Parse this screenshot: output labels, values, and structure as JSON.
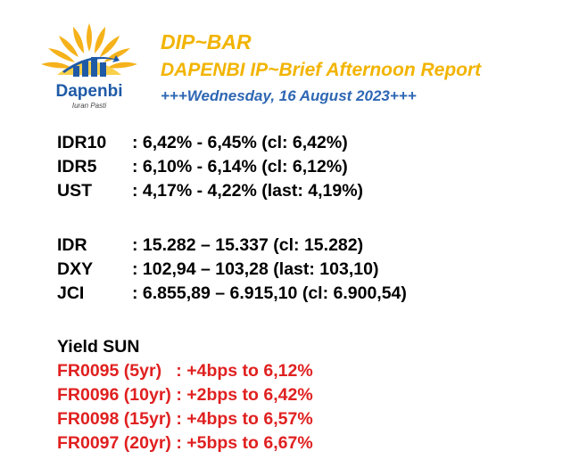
{
  "logo": {
    "name": "Dapenbi",
    "tagline": "Iuran Pasti",
    "colors": {
      "petal": "#f5b21a",
      "bars": "#1f5aa6"
    }
  },
  "header": {
    "title": "DIP~BAR",
    "subtitle": "DAPENBI IP~Brief Afternoon Report",
    "date": "+++Wednesday, 16 August 2023+++"
  },
  "group1": [
    {
      "label": "IDR10",
      "value": ": 6,42% - 6,45% (cl: 6,42%)"
    },
    {
      "label": "IDR5",
      "value": ": 6,10% - 6,14% (cl: 6,12%)"
    },
    {
      "label": "UST",
      "value": ": 4,17% - 4,22% (last: 4,19%)"
    }
  ],
  "group2": [
    {
      "label": "IDR",
      "value": ": 15.282 – 15.337 (cl: 15.282)"
    },
    {
      "label": "DXY",
      "value": ": 102,94 – 103,28 (last: 103,10)"
    },
    {
      "label": "JCI",
      "value": ": 6.855,89 – 6.915,10 (cl: 6.900,54)"
    }
  ],
  "yield_sun": {
    "title": "Yield SUN",
    "items": [
      "FR0095 (5yr)   : +4bps to 6,12%",
      "FR0096 (10yr) : +2bps to 6,42%",
      "FR0098 (15yr) : +4bps to 6,57%",
      "FR0097 (20yr) : +5bps to 6,67%"
    ]
  }
}
